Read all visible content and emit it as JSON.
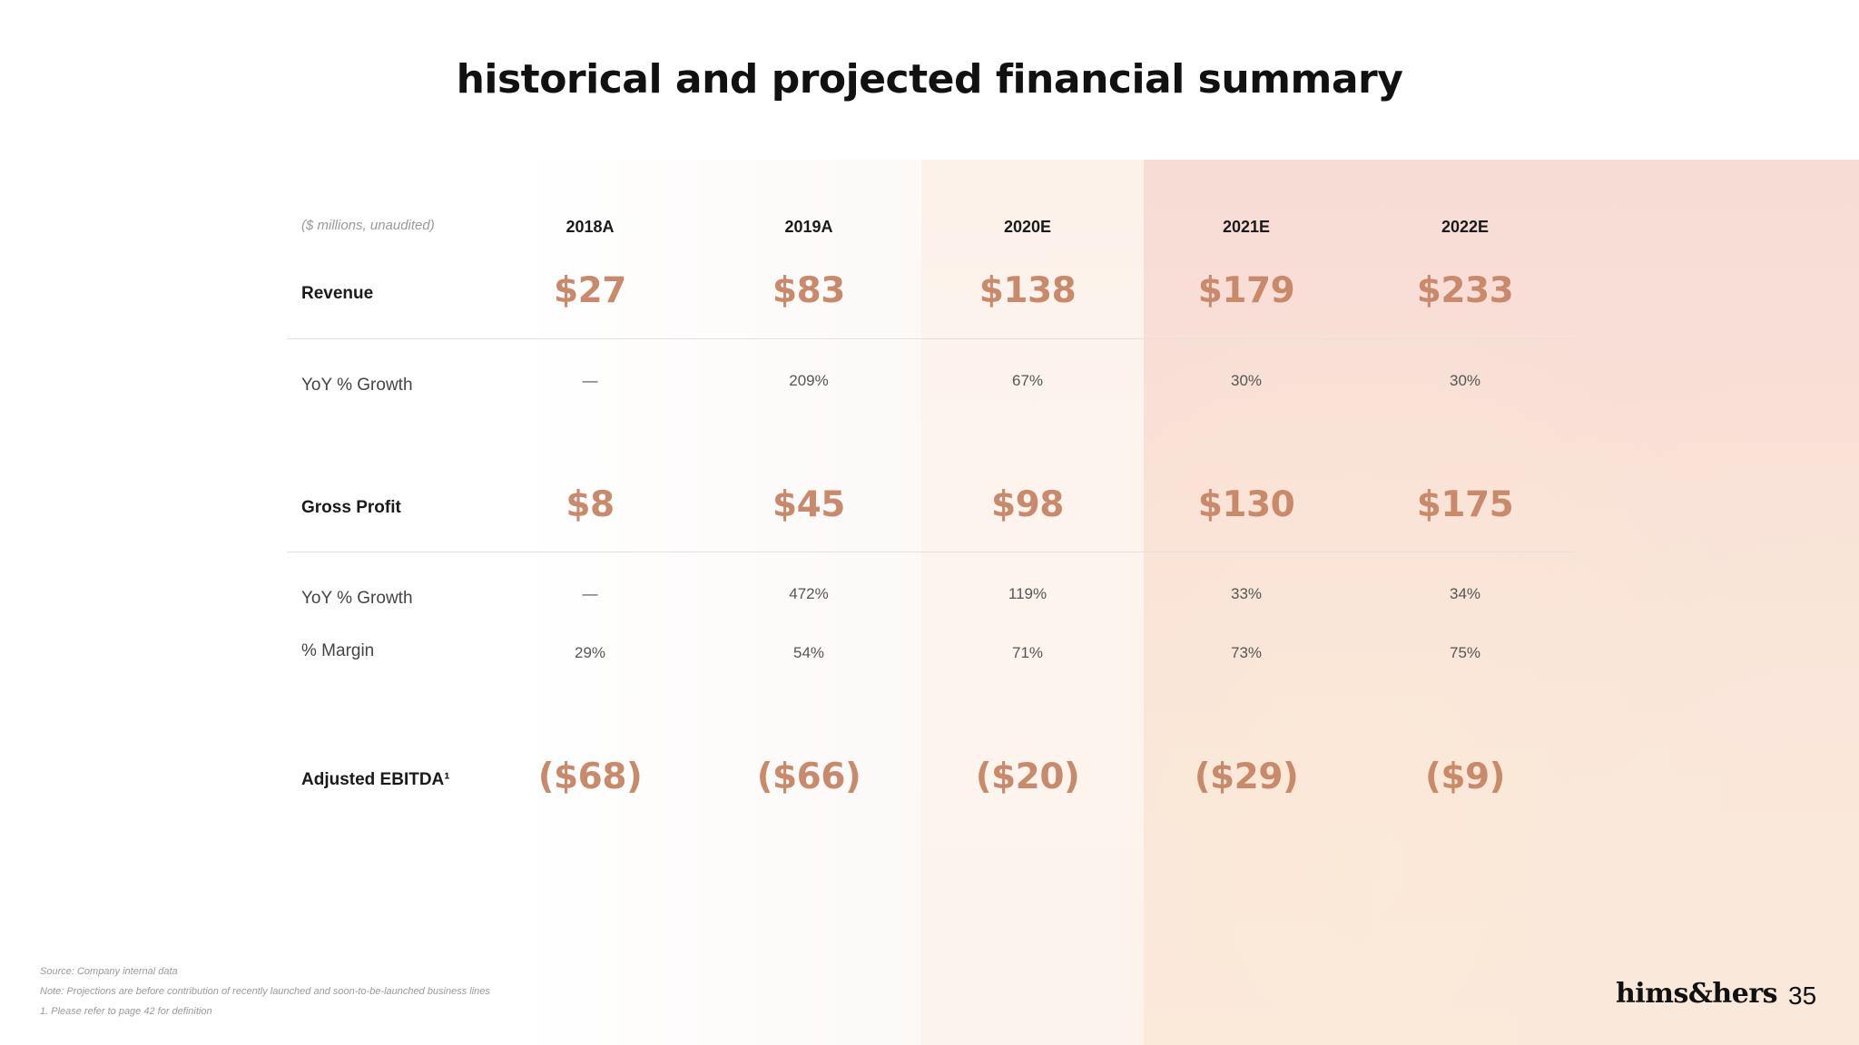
{
  "slide": {
    "title": "historical and projected financial summary",
    "page_number": "35",
    "logo_text": "hims&hers"
  },
  "table": {
    "units": "($ millions, unaudited)",
    "years": [
      "2018A",
      "2019A",
      "2020E",
      "2021E",
      "2022E"
    ],
    "rows": {
      "revenue": {
        "label": "Revenue",
        "values": [
          "$27",
          "$83",
          "$138",
          "$179",
          "$233"
        ]
      },
      "revenue_growth": {
        "label": "YoY % Growth",
        "values": [
          "—",
          "209%",
          "67%",
          "30%",
          "30%"
        ]
      },
      "gross_profit": {
        "label": "Gross Profit",
        "values": [
          "$8",
          "$45",
          "$98",
          "$130",
          "$175"
        ]
      },
      "gross_profit_growth": {
        "label": "YoY % Growth",
        "values": [
          "—",
          "472%",
          "119%",
          "33%",
          "34%"
        ]
      },
      "margin": {
        "label": "% Margin",
        "values": [
          "29%",
          "54%",
          "71%",
          "73%",
          "75%"
        ]
      },
      "adjusted_ebitda": {
        "label": "Adjusted EBITDA¹",
        "values": [
          "($68)",
          "($66)",
          "($20)",
          "($29)",
          "($9)"
        ]
      }
    }
  },
  "footnotes": {
    "source": "Source: Company internal data",
    "note": "Note: Projections are before contribution of recently launched and soon-to-be-launched business lines",
    "definition": "1. Please refer to page 42 for definition"
  },
  "colors": {
    "accent": "#c98a6c",
    "projected_bg": "#f9e0d6",
    "estimate_bg": "#fdf4ee"
  }
}
